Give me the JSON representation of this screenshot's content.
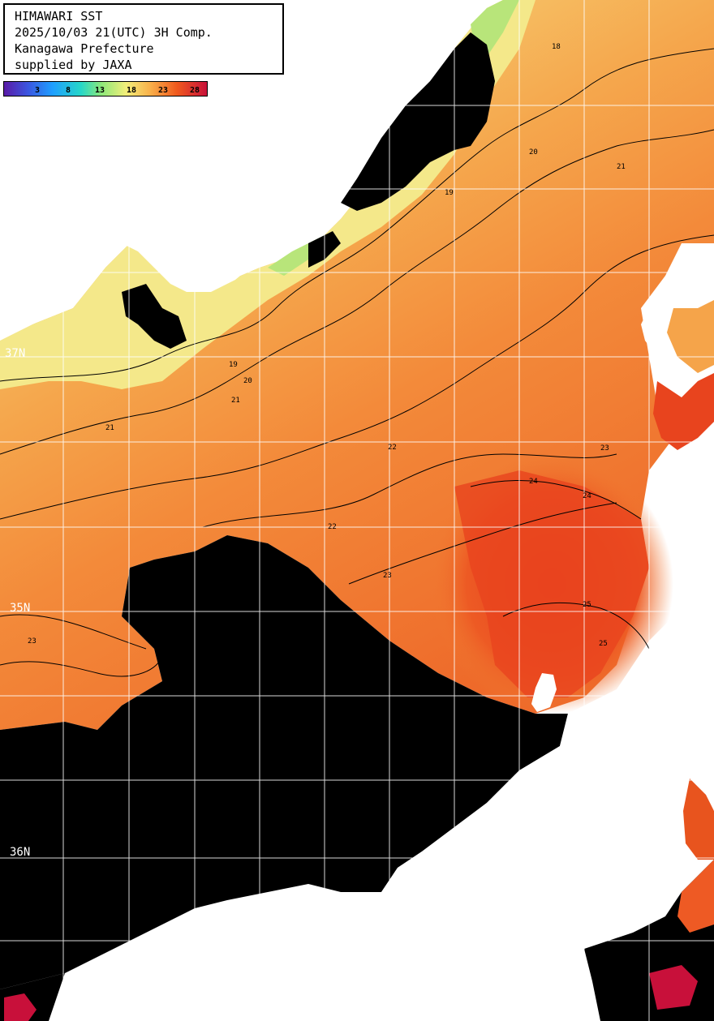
{
  "header": {
    "line1": "HIMAWARI SST",
    "line2": "2025/10/03 21(UTC) 3H Comp.",
    "line3": "Kanagawa Prefecture",
    "line4": "supplied by JAXA"
  },
  "colorbar": {
    "ticks": [
      "3",
      "8",
      "13",
      "18",
      "23",
      "28"
    ],
    "colors": [
      "#5a1aa6",
      "#1f8fff",
      "#26d7e8",
      "#8de87a",
      "#f2ef7a",
      "#f9a64a",
      "#f05a1e",
      "#c8103a"
    ]
  },
  "latitude_labels": [
    "37N",
    "35N",
    "36N"
  ],
  "contour_labels": [
    "18",
    "19",
    "20",
    "21",
    "22",
    "23",
    "24",
    "25"
  ],
  "colors": {
    "land": "#ffffff",
    "no_data": "#000000",
    "grid": "#ffffff",
    "contour": "#000000",
    "sst_18": "#f2e07a",
    "sst_20": "#f5b45e",
    "sst_22": "#f5923e",
    "sst_24": "#ea5a22",
    "sst_25": "#e64420",
    "sst_28": "#c8103a"
  }
}
